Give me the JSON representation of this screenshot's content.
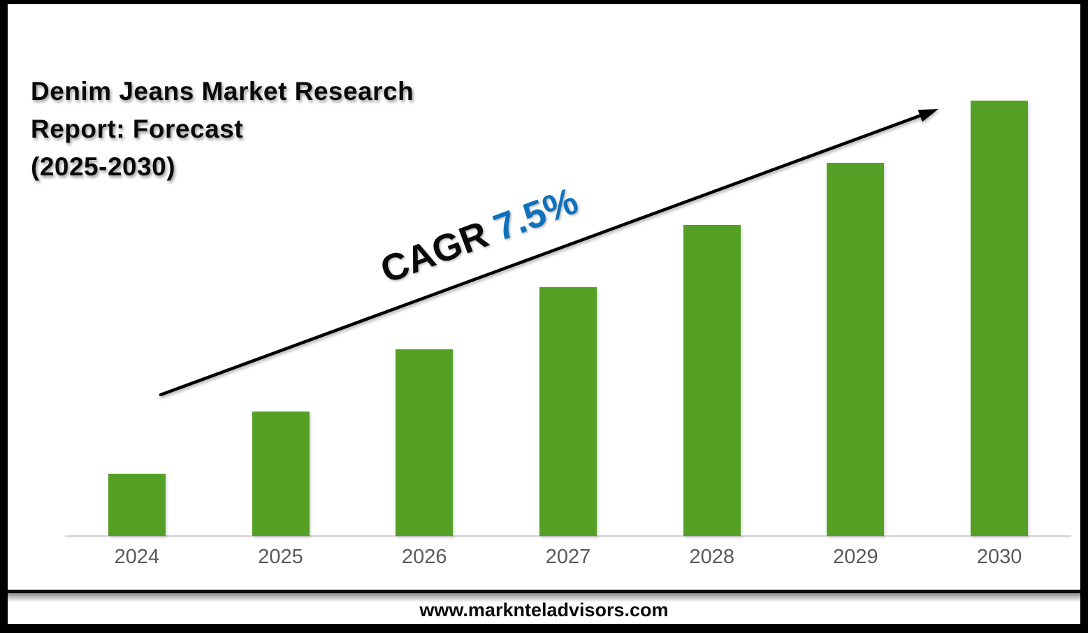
{
  "title": "Denim Jeans Market Research\nReport: Forecast\n(2025-2030)",
  "annotation": {
    "label": "CAGR",
    "value": "7.5%"
  },
  "footer": {
    "url": "www.marknteladvisors.com"
  },
  "colors": {
    "bar": "#54a024",
    "cagr_value": "#0e72bc",
    "axis_line": "#d9d9d9",
    "tick_label": "#595959",
    "arrow": "#000000"
  },
  "chart_data": {
    "type": "bar",
    "title": "Denim Jeans Market Research Report: Forecast (2025-2030)",
    "categories": [
      "2024",
      "2025",
      "2026",
      "2027",
      "2028",
      "2029",
      "2030"
    ],
    "values_relative": [
      1,
      2,
      3,
      4,
      5,
      6,
      7
    ],
    "value_axis": "none shown; bars rise linearly year over year",
    "annotation": "CAGR 7.5%",
    "legend": false,
    "grid": false,
    "bar_color": "#54a024"
  }
}
